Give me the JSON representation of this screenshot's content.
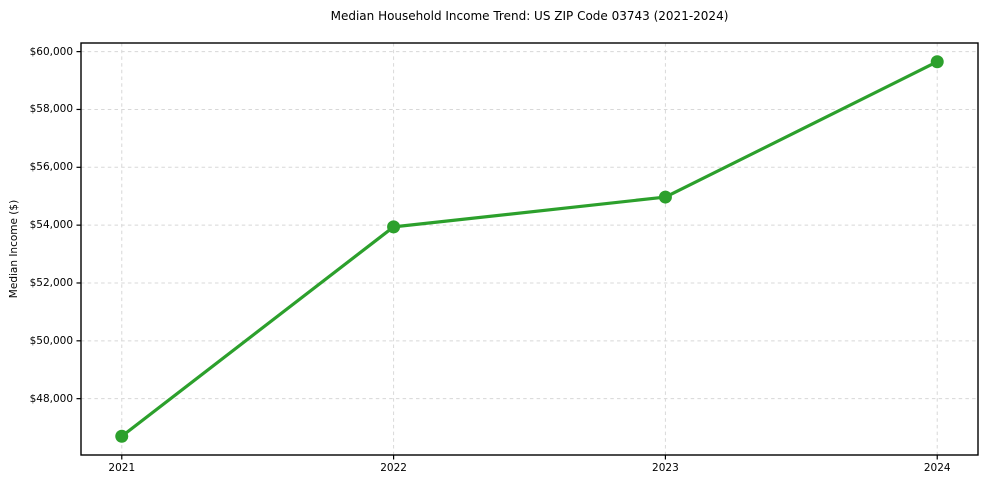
{
  "chart_data": {
    "type": "line",
    "title": "Median Household Income Trend: US ZIP Code 03743 (2021-2024)",
    "xlabel": "",
    "ylabel": "Median Income ($)",
    "x": [
      2021,
      2022,
      2023,
      2024
    ],
    "x_tick_labels": [
      "2021",
      "2022",
      "2023",
      "2024"
    ],
    "series": [
      {
        "name": "Median Household Income",
        "values": [
          46700,
          53940,
          54970,
          59650
        ]
      }
    ],
    "y_ticks": [
      48000,
      50000,
      52000,
      54000,
      56000,
      58000,
      60000
    ],
    "y_tick_labels": [
      "$48,000",
      "$50,000",
      "$52,000",
      "$54,000",
      "$56,000",
      "$58,000",
      "$60,000"
    ],
    "xlim": [
      2020.85,
      2024.15
    ],
    "ylim": [
      46052,
      60298
    ],
    "grid": true,
    "legend_position": "none",
    "line_color": "#2ca02c",
    "marker": "circle",
    "grid_color": "#d8d8d8",
    "frame_color": "#000000",
    "background_color": "#ffffff"
  }
}
